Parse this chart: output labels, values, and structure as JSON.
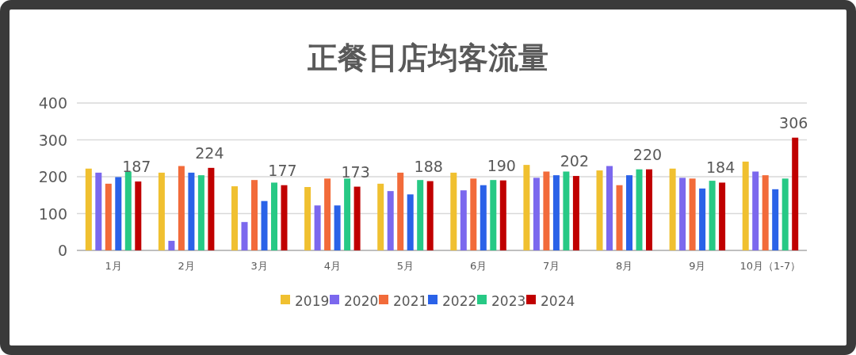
{
  "chart_data": {
    "type": "bar",
    "title": "正餐日店均客流量",
    "categories": [
      "1月",
      "2月",
      "3月",
      "4月",
      "5月",
      "6月",
      "7月",
      "8月",
      "9月",
      "10月（1-7）"
    ],
    "series": [
      {
        "name": "2019",
        "color": "#f0c030",
        "values": [
          222,
          211,
          174,
          172,
          181,
          211,
          232,
          217,
          222,
          241
        ]
      },
      {
        "name": "2020",
        "color": "#7b68ee",
        "values": [
          211,
          26,
          77,
          122,
          161,
          163,
          197,
          229,
          197,
          214
        ]
      },
      {
        "name": "2021",
        "color": "#f26b3a",
        "values": [
          181,
          229,
          191,
          195,
          211,
          195,
          214,
          177,
          195,
          204
        ]
      },
      {
        "name": "2022",
        "color": "#2a62e8",
        "values": [
          199,
          211,
          134,
          122,
          152,
          177,
          204,
          204,
          168,
          166
        ]
      },
      {
        "name": "2023",
        "color": "#27c985",
        "values": [
          214,
          204,
          184,
          195,
          191,
          191,
          214,
          220,
          189,
          195
        ]
      },
      {
        "name": "2024",
        "color": "#c00000",
        "values": [
          187,
          224,
          177,
          173,
          188,
          190,
          202,
          220,
          184,
          306
        ],
        "value_labels": [
          "187",
          "224",
          "177",
          "173",
          "188",
          "190",
          "202",
          "220",
          "184",
          "306"
        ]
      }
    ],
    "ylim": [
      0,
      400
    ],
    "yticks": [
      0,
      100,
      200,
      300,
      400
    ],
    "grid": "y",
    "legend": "bottom"
  }
}
